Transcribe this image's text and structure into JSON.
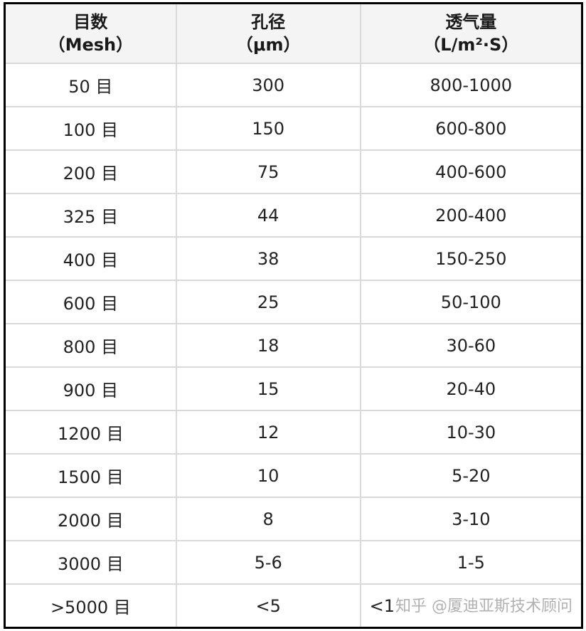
{
  "headers": [
    {
      "line1": "目数",
      "line2": "（Mesh）"
    },
    {
      "line1": "孔径",
      "line2": "（μm）"
    },
    {
      "line1": "透气量",
      "line2": "（L/m²·S）"
    }
  ],
  "rows": [
    [
      "50 目",
      "300",
      "800-1000"
    ],
    [
      "100 目",
      "150",
      "600-800"
    ],
    [
      "200 目",
      "75",
      "400-600"
    ],
    [
      "325 目",
      "44",
      "200-400"
    ],
    [
      "400 目",
      "38",
      "150-250"
    ],
    [
      "600 目",
      "25",
      "50-100"
    ],
    [
      "800 目",
      "18",
      "30-60"
    ],
    [
      "900 目",
      "15",
      "20-40"
    ],
    [
      "1200 目",
      "12",
      "10-30"
    ],
    [
      "1500 目",
      "10",
      "5-20"
    ],
    [
      "2000 目",
      "8",
      "3-10"
    ],
    [
      "3000 目",
      "5-6",
      "1-5"
    ],
    [
      ">5000 目",
      "<5",
      "<1"
    ]
  ],
  "watermark": "知乎 @厦迪亚斯技术顾问"
}
